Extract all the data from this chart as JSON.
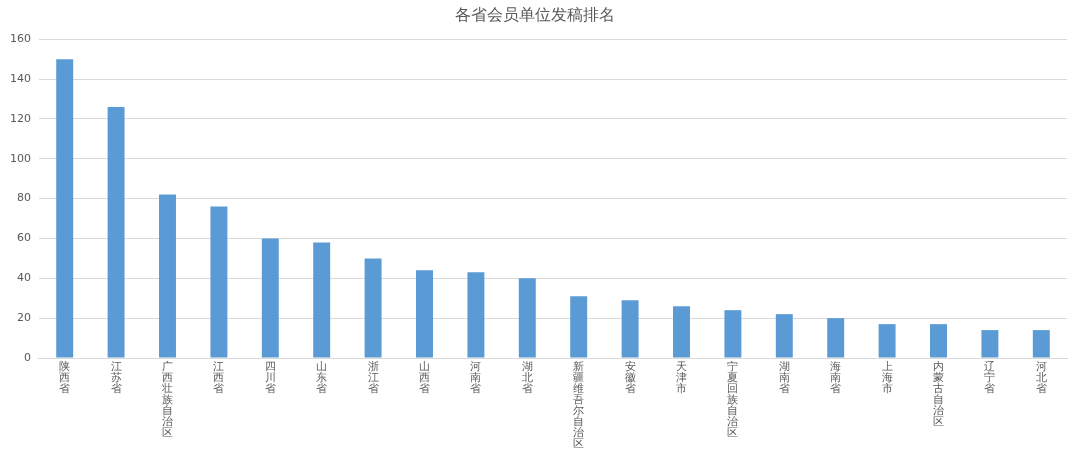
{
  "chart_data": {
    "type": "bar",
    "title": "各省会员单位发稿排名",
    "categories": [
      "陕西省",
      "江苏省",
      "广西壮族自治区",
      "江西省",
      "四川省",
      "山东省",
      "浙江省",
      "山西省",
      "河南省",
      "湖北省",
      "新疆维吾尔自治区",
      "安徽省",
      "天津市",
      "宁夏回族自治区",
      "湖南省",
      "海南省",
      "上海市",
      "内蒙古自治区",
      "辽宁省",
      "河北省"
    ],
    "values": [
      150,
      126,
      82,
      76,
      60,
      58,
      50,
      44,
      43,
      40,
      31,
      29,
      26,
      24,
      22,
      20,
      17,
      17,
      14,
      14
    ],
    "color": "#5b9bd5",
    "ylim": [
      0,
      160
    ],
    "yticks": [
      0,
      20,
      40,
      60,
      80,
      100,
      120,
      140,
      160
    ],
    "grid": "y",
    "legend": false
  }
}
